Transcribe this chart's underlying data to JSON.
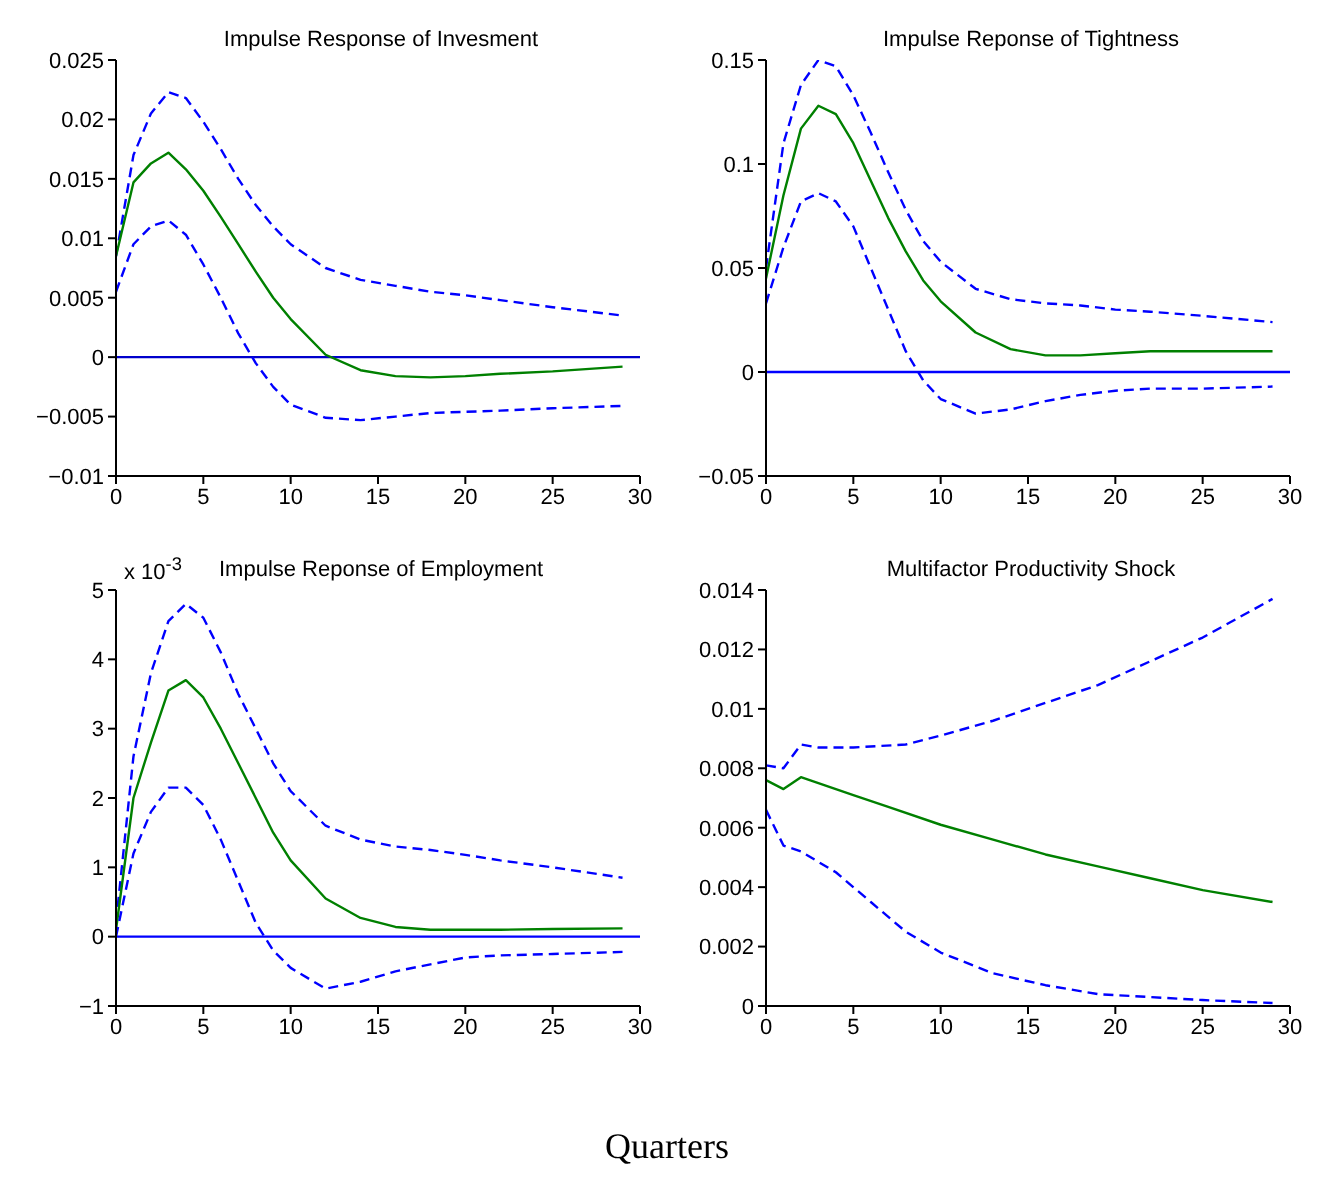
{
  "chart_data": [
    {
      "type": "line",
      "title": "Impulse Response of Invesment",
      "xlim": [
        0,
        30
      ],
      "xticks": [
        0,
        5,
        10,
        15,
        20,
        25,
        30
      ],
      "ylim": [
        -0.01,
        0.025
      ],
      "yticks": [
        -0.01,
        -0.005,
        0,
        0.005,
        0.01,
        0.015,
        0.02,
        0.025
      ],
      "marker": "none",
      "ref_lines": [
        {
          "axis": "y",
          "value": 0,
          "color": "#0000cc"
        }
      ],
      "series": [
        {
          "color": "#0000ff",
          "line_style": "dashed",
          "x": [
            0,
            1,
            2,
            3,
            4,
            5,
            6,
            7,
            8,
            9,
            10,
            12,
            14,
            16,
            18,
            20,
            22,
            25,
            29
          ],
          "values": [
            0.0085,
            0.017,
            0.0205,
            0.0223,
            0.0218,
            0.0198,
            0.0175,
            0.015,
            0.0128,
            0.011,
            0.0095,
            0.0075,
            0.0065,
            0.006,
            0.0055,
            0.0052,
            0.0048,
            0.0042,
            0.0035
          ]
        },
        {
          "color": "#008000",
          "line_style": "solid",
          "x": [
            0,
            1,
            2,
            3,
            4,
            5,
            6,
            7,
            8,
            9,
            10,
            12,
            14,
            16,
            18,
            20,
            22,
            25,
            29
          ],
          "values": [
            0.0085,
            0.0147,
            0.0163,
            0.0172,
            0.0158,
            0.014,
            0.0118,
            0.0095,
            0.0072,
            0.005,
            0.0032,
            0.0002,
            -0.0011,
            -0.0016,
            -0.0017,
            -0.0016,
            -0.0014,
            -0.0012,
            -0.0008
          ]
        },
        {
          "color": "#0000ff",
          "line_style": "dashed",
          "x": [
            0,
            1,
            2,
            3,
            4,
            5,
            6,
            7,
            8,
            9,
            10,
            12,
            14,
            16,
            18,
            20,
            22,
            25,
            29
          ],
          "values": [
            0.0055,
            0.0095,
            0.011,
            0.0115,
            0.0103,
            0.0078,
            0.005,
            0.002,
            -0.0005,
            -0.0025,
            -0.004,
            -0.0051,
            -0.0053,
            -0.005,
            -0.0047,
            -0.0046,
            -0.0045,
            -0.0043,
            -0.0041
          ]
        }
      ]
    },
    {
      "type": "line",
      "title": "Impulse Reponse of Tightness",
      "xlim": [
        0,
        30
      ],
      "xticks": [
        0,
        5,
        10,
        15,
        20,
        25,
        30
      ],
      "ylim": [
        -0.05,
        0.15
      ],
      "yticks": [
        -0.05,
        0,
        0.05,
        0.1,
        0.15
      ],
      "marker": "none",
      "ref_lines": [
        {
          "axis": "y",
          "value": 0,
          "color": "#0000ff"
        }
      ],
      "series": [
        {
          "color": "#0000ff",
          "line_style": "dashed",
          "x": [
            0,
            1,
            2,
            3,
            4,
            5,
            6,
            7,
            8,
            9,
            10,
            12,
            14,
            16,
            18,
            20,
            22,
            25,
            29
          ],
          "values": [
            0.05,
            0.11,
            0.138,
            0.15,
            0.147,
            0.133,
            0.115,
            0.096,
            0.078,
            0.063,
            0.053,
            0.04,
            0.035,
            0.033,
            0.032,
            0.03,
            0.029,
            0.027,
            0.024
          ]
        },
        {
          "color": "#008000",
          "line_style": "solid",
          "x": [
            0,
            1,
            2,
            3,
            4,
            5,
            6,
            7,
            8,
            9,
            10,
            12,
            14,
            16,
            18,
            20,
            22,
            25,
            29
          ],
          "values": [
            0.045,
            0.085,
            0.117,
            0.128,
            0.124,
            0.11,
            0.092,
            0.074,
            0.058,
            0.044,
            0.034,
            0.019,
            0.011,
            0.008,
            0.008,
            0.009,
            0.01,
            0.01,
            0.01
          ]
        },
        {
          "color": "#0000ff",
          "line_style": "dashed",
          "x": [
            0,
            1,
            2,
            3,
            4,
            5,
            6,
            7,
            8,
            9,
            10,
            12,
            14,
            16,
            18,
            20,
            22,
            25,
            29
          ],
          "values": [
            0.033,
            0.06,
            0.082,
            0.086,
            0.082,
            0.07,
            0.05,
            0.03,
            0.01,
            -0.004,
            -0.013,
            -0.02,
            -0.018,
            -0.014,
            -0.011,
            -0.009,
            -0.008,
            -0.008,
            -0.007
          ]
        }
      ]
    },
    {
      "type": "line",
      "title": "Impulse Reponse of Employment",
      "ylabel": "x 10$^{-3}$",
      "xlim": [
        0,
        30
      ],
      "xticks": [
        0,
        5,
        10,
        15,
        20,
        25,
        30
      ],
      "ylim": [
        -1,
        5
      ],
      "yticks": [
        -1,
        0,
        1,
        2,
        3,
        4,
        5
      ],
      "marker": "none",
      "ref_lines": [
        {
          "axis": "y",
          "value": 0,
          "color": "#0000ff"
        }
      ],
      "series": [
        {
          "color": "#0000ff",
          "line_style": "dashed",
          "x": [
            0,
            1,
            2,
            3,
            4,
            5,
            6,
            7,
            8,
            9,
            10,
            12,
            14,
            16,
            18,
            20,
            22,
            25,
            29
          ],
          "values": [
            0.2,
            2.6,
            3.8,
            4.55,
            4.8,
            4.6,
            4.1,
            3.5,
            3.0,
            2.5,
            2.1,
            1.6,
            1.4,
            1.3,
            1.25,
            1.18,
            1.1,
            1.0,
            0.85
          ]
        },
        {
          "color": "#008000",
          "line_style": "solid",
          "x": [
            0,
            1,
            2,
            3,
            4,
            5,
            6,
            7,
            8,
            9,
            10,
            12,
            14,
            16,
            18,
            20,
            22,
            25,
            29
          ],
          "values": [
            0.1,
            2.0,
            2.8,
            3.55,
            3.7,
            3.45,
            3.0,
            2.5,
            2.0,
            1.5,
            1.1,
            0.55,
            0.27,
            0.14,
            0.1,
            0.1,
            0.1,
            0.11,
            0.12
          ]
        },
        {
          "color": "#0000ff",
          "line_style": "dashed",
          "x": [
            0,
            1,
            2,
            3,
            4,
            5,
            6,
            7,
            8,
            9,
            10,
            12,
            14,
            16,
            18,
            20,
            22,
            25,
            29
          ],
          "values": [
            0,
            1.2,
            1.8,
            2.15,
            2.15,
            1.9,
            1.4,
            0.8,
            0.2,
            -0.2,
            -0.45,
            -0.75,
            -0.65,
            -0.5,
            -0.4,
            -0.3,
            -0.27,
            -0.25,
            -0.22
          ]
        }
      ]
    },
    {
      "type": "line",
      "title": "Multifactor Productivity Shock",
      "xlabel": "Quarters",
      "xlim": [
        0,
        30
      ],
      "xticks": [
        0,
        5,
        10,
        15,
        20,
        25,
        30
      ],
      "ylim": [
        0,
        0.014
      ],
      "yticks": [
        0,
        0.002,
        0.004,
        0.006,
        0.008,
        0.01,
        0.012,
        0.014
      ],
      "marker": "none",
      "series": [
        {
          "color": "#0000ff",
          "line_style": "dashed",
          "x": [
            0,
            1,
            2,
            3,
            5,
            8,
            10,
            13,
            16,
            19,
            22,
            25,
            29
          ],
          "values": [
            0.0081,
            0.008,
            0.0088,
            0.0087,
            0.0087,
            0.0088,
            0.0091,
            0.0096,
            0.0102,
            0.0108,
            0.0116,
            0.0124,
            0.0137
          ]
        },
        {
          "color": "#008000",
          "line_style": "solid",
          "x": [
            0,
            1,
            2,
            3,
            4,
            5,
            7,
            10,
            13,
            16,
            19,
            22,
            25,
            29
          ],
          "values": [
            0.0076,
            0.0073,
            0.0077,
            0.0075,
            0.0073,
            0.0071,
            0.0067,
            0.0061,
            0.0056,
            0.0051,
            0.0047,
            0.0043,
            0.0039,
            0.0035
          ]
        },
        {
          "color": "#0000ff",
          "line_style": "dashed",
          "x": [
            0,
            1,
            2,
            4,
            6,
            8,
            10,
            13,
            16,
            19,
            22,
            25,
            29
          ],
          "values": [
            0.0066,
            0.0054,
            0.0052,
            0.0045,
            0.0035,
            0.0025,
            0.0018,
            0.0011,
            0.0007,
            0.0004,
            0.0003,
            0.0002,
            0.0001
          ]
        }
      ]
    }
  ]
}
